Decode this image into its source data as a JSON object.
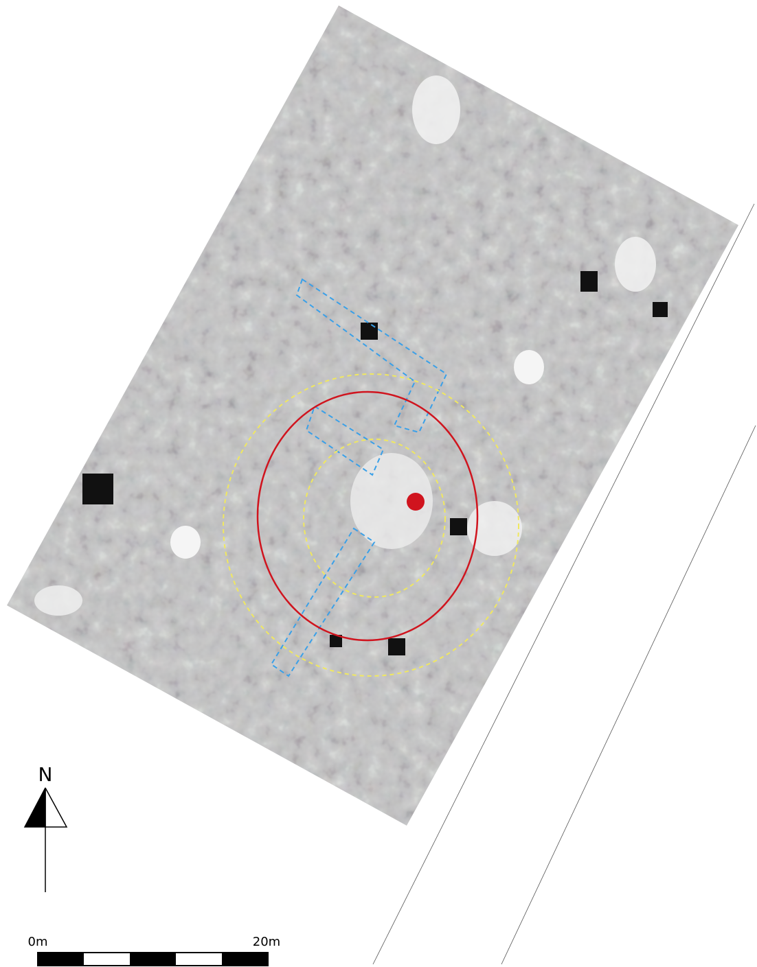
{
  "north_arrow": {
    "label": "N"
  },
  "scale_bar": {
    "start_label": "0m",
    "end_label": "20m"
  }
}
